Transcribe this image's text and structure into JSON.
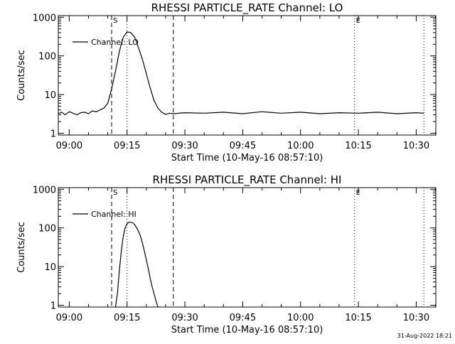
{
  "chart_data": [
    {
      "type": "line",
      "title": "RHESSI PARTICLE_RATE Channel: LO",
      "xlabel": "Start Time (10-May-16 08:57:10)",
      "ylabel": "Counts/sec",
      "yscale": "log",
      "ylim": [
        0.9,
        1100
      ],
      "xlim": [
        "08:57:10",
        "10:35:05"
      ],
      "x_ticks": [
        "09:00",
        "09:15",
        "09:30",
        "09:45",
        "10:00",
        "10:15",
        "10:30"
      ],
      "y_ticks": [
        "1",
        "10",
        "100",
        "1000"
      ],
      "legend": "Channel: LO",
      "legend_position": "top-left",
      "markers": [
        {
          "time": "09:11:00",
          "label": "S",
          "style": "dashed"
        },
        {
          "time": "09:15:00",
          "label": "",
          "style": "dotted"
        },
        {
          "time": "09:27:00",
          "label": "",
          "style": "dashed"
        },
        {
          "time": "10:14:00",
          "label": "E",
          "style": "dotted"
        },
        {
          "time": "10:32:00",
          "label": "",
          "style": "dotted"
        }
      ],
      "series": [
        {
          "name": "Channel: LO",
          "x": [
            "08:57:10",
            "08:58:00",
            "08:59:00",
            "09:00:00",
            "09:01:00",
            "09:02:00",
            "09:03:00",
            "09:04:00",
            "09:05:00",
            "09:06:00",
            "09:07:00",
            "09:08:00",
            "09:09:00",
            "09:10:00",
            "09:11:00",
            "09:12:00",
            "09:13:00",
            "09:14:00",
            "09:15:00",
            "09:16:00",
            "09:17:00",
            "09:18:00",
            "09:19:00",
            "09:20:00",
            "09:21:00",
            "09:22:00",
            "09:23:00",
            "09:24:00",
            "09:25:00",
            "09:26:00",
            "09:27:00",
            "09:30:00",
            "09:35:00",
            "09:40:00",
            "09:45:00",
            "09:50:00",
            "09:55:00",
            "10:00:00",
            "10:05:00",
            "10:10:00",
            "10:15:00",
            "10:20:00",
            "10:25:00",
            "10:30:00",
            "10:32:00"
          ],
          "y": [
            3.2,
            3.5,
            3.0,
            3.6,
            3.3,
            3.0,
            3.4,
            3.5,
            3.2,
            3.8,
            3.6,
            4.0,
            4.5,
            6,
            14,
            40,
            130,
            300,
            420,
            400,
            300,
            160,
            80,
            35,
            15,
            7,
            4.5,
            3.5,
            3.1,
            3.3,
            3.2,
            3.4,
            3.3,
            3.5,
            3.2,
            3.6,
            3.3,
            3.5,
            3.2,
            3.4,
            3.3,
            3.5,
            3.2,
            3.4,
            3.3
          ]
        }
      ]
    },
    {
      "type": "line",
      "title": "RHESSI PARTICLE_RATE Channel: HI",
      "xlabel": "Start Time (10-May-16 08:57:10)",
      "ylabel": "Counts/sec",
      "yscale": "log",
      "ylim": [
        0.9,
        1100
      ],
      "xlim": [
        "08:57:10",
        "10:35:05"
      ],
      "x_ticks": [
        "09:00",
        "09:15",
        "09:30",
        "09:45",
        "10:00",
        "10:15",
        "10:30"
      ],
      "y_ticks": [
        "1",
        "10",
        "100",
        "1000"
      ],
      "legend": "Channel: HI",
      "legend_position": "top-left",
      "markers": [
        {
          "time": "09:11:00",
          "label": "S",
          "style": "dashed"
        },
        {
          "time": "09:15:00",
          "label": "",
          "style": "dotted"
        },
        {
          "time": "09:27:00",
          "label": "",
          "style": "dashed"
        },
        {
          "time": "10:14:00",
          "label": "E",
          "style": "dotted"
        },
        {
          "time": "10:32:00",
          "label": "",
          "style": "dotted"
        }
      ],
      "series": [
        {
          "name": "Channel: HI",
          "x": [
            "09:12:00",
            "09:12:30",
            "09:13:00",
            "09:13:30",
            "09:14:00",
            "09:14:30",
            "09:15:00",
            "09:15:30",
            "09:16:00",
            "09:16:30",
            "09:17:00",
            "09:17:30",
            "09:18:00",
            "09:18:30",
            "09:19:00",
            "09:19:30",
            "09:20:00",
            "09:20:30",
            "09:21:00",
            "09:21:30",
            "09:22:00",
            "09:22:30",
            "09:23:00"
          ],
          "y": [
            0.9,
            2,
            8,
            25,
            60,
            100,
            130,
            140,
            140,
            135,
            120,
            100,
            80,
            60,
            40,
            25,
            15,
            9,
            5,
            3,
            2,
            1.3,
            0.9
          ]
        }
      ]
    }
  ],
  "footer": {
    "timestamp": "31-Aug-2022 18:21"
  }
}
